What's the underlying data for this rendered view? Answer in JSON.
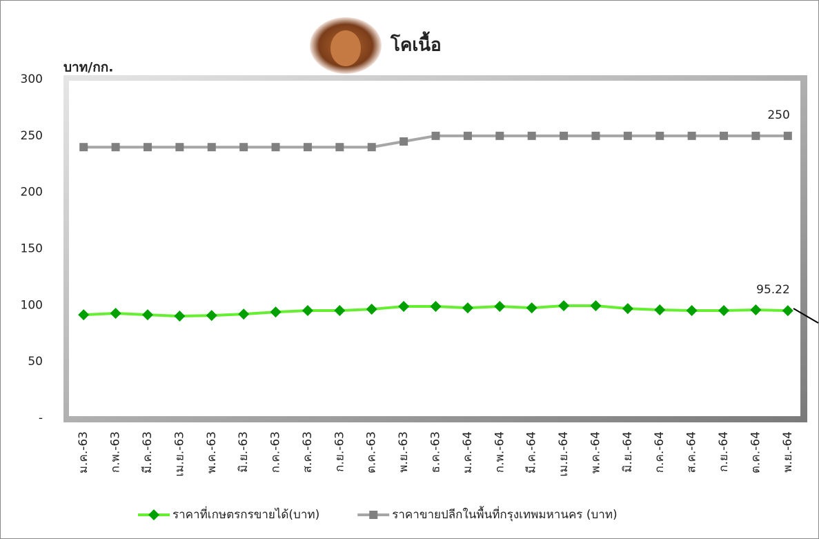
{
  "chart_data": {
    "type": "line",
    "title": "โคเนื้อ",
    "y_label": "บาท/กก.",
    "categories": [
      "ม.ค.-63",
      "ก.พ.-63",
      "มี.ค.-63",
      "เม.ย.-63",
      "พ.ค.-63",
      "มิ.ย.-63",
      "ก.ค.-63",
      "ส.ค.-63",
      "ก.ย.-63",
      "ต.ค.-63",
      "พ.ย.-63",
      "ธ.ค.-63",
      "ม.ค.-64",
      "ก.พ.-64",
      "มี.ค.-64",
      "เม.ย.-64",
      "พ.ค.-64",
      "มิ.ย.-64",
      "ก.ค.-64",
      "ส.ค.-64",
      "ก.ย.-64",
      "ต.ค.-64",
      "พ.ย.-64"
    ],
    "series": [
      {
        "name": "ราคาที่เกษตรกรขายได้(บาท)",
        "color": "#66ee33",
        "marker_color": "#00a000",
        "marker": "diamond",
        "values": [
          91.6,
          92.9,
          91.6,
          90.4,
          91,
          92.2,
          94,
          95.3,
          95.3,
          96.5,
          99,
          99,
          97.7,
          99,
          97.7,
          99.6,
          99.6,
          97.1,
          95.9,
          95.3,
          95.3,
          95.9,
          95.22
        ]
      },
      {
        "name": "ราคาขายปลีกในพื้นที่กรุงเทพมหานคร (บาท)",
        "color": "#a6a6a6",
        "marker_color": "#808080",
        "marker": "square",
        "values": [
          240,
          240,
          240,
          240,
          240,
          240,
          240,
          240,
          240,
          240,
          245,
          250,
          250,
          250,
          250,
          250,
          250,
          250,
          250,
          250,
          250,
          250,
          250
        ]
      }
    ],
    "label_last": true,
    "ylim": [
      0,
      300
    ],
    "yticks": [
      {
        "value": 0,
        "label": "-"
      },
      50,
      100,
      150,
      200,
      250,
      300
    ],
    "grid": false,
    "legend": "bottom"
  }
}
